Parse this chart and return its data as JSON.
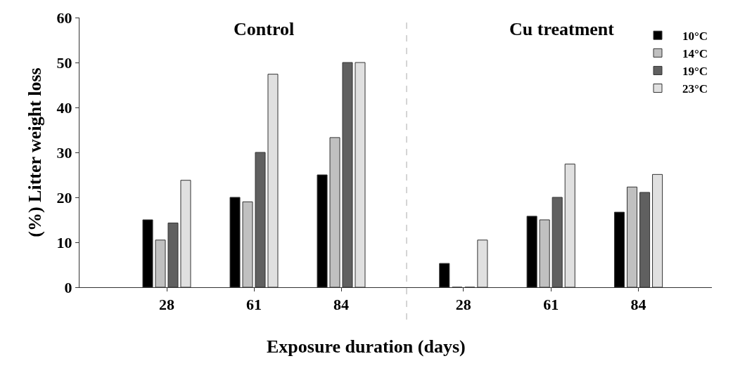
{
  "chart_data": [
    {
      "type": "bar",
      "title": "Control",
      "xlabel": "Exposure duration (days)",
      "ylabel": "(%) Litter weight loss",
      "categories": [
        "28",
        "61",
        "84"
      ],
      "ylim": [
        0,
        60
      ],
      "yticks": [
        0,
        10,
        20,
        30,
        40,
        50,
        60
      ],
      "series": [
        {
          "color": "#000000",
          "values": [
            15,
            20,
            25
          ]
        },
        {
          "color": "#c0c0c0",
          "values": [
            10.5,
            19,
            33.3
          ]
        },
        {
          "color": "#606060",
          "values": [
            14.3,
            30,
            50
          ]
        },
        {
          "color": "#e0e0e0",
          "values": [
            23.8,
            47.4,
            50
          ]
        }
      ]
    },
    {
      "type": "bar",
      "title": "Cu treatment",
      "categories": [
        "28",
        "61",
        "84"
      ],
      "ylim": [
        0,
        60
      ],
      "tick_labels": "x",
      "legend": "top right",
      "series": [
        {
          "name": "10°C",
          "color": "#000000",
          "values": [
            5.3,
            15.8,
            16.7
          ]
        },
        {
          "name": "14°C",
          "color": "#c0c0c0",
          "values": [
            0,
            15,
            22.3
          ]
        },
        {
          "name": "19°C",
          "color": "#606060",
          "values": [
            0,
            20,
            21.1
          ]
        },
        {
          "name": "23°C",
          "color": "#e0e0e0",
          "values": [
            10.5,
            27.4,
            25.1
          ]
        }
      ]
    }
  ]
}
